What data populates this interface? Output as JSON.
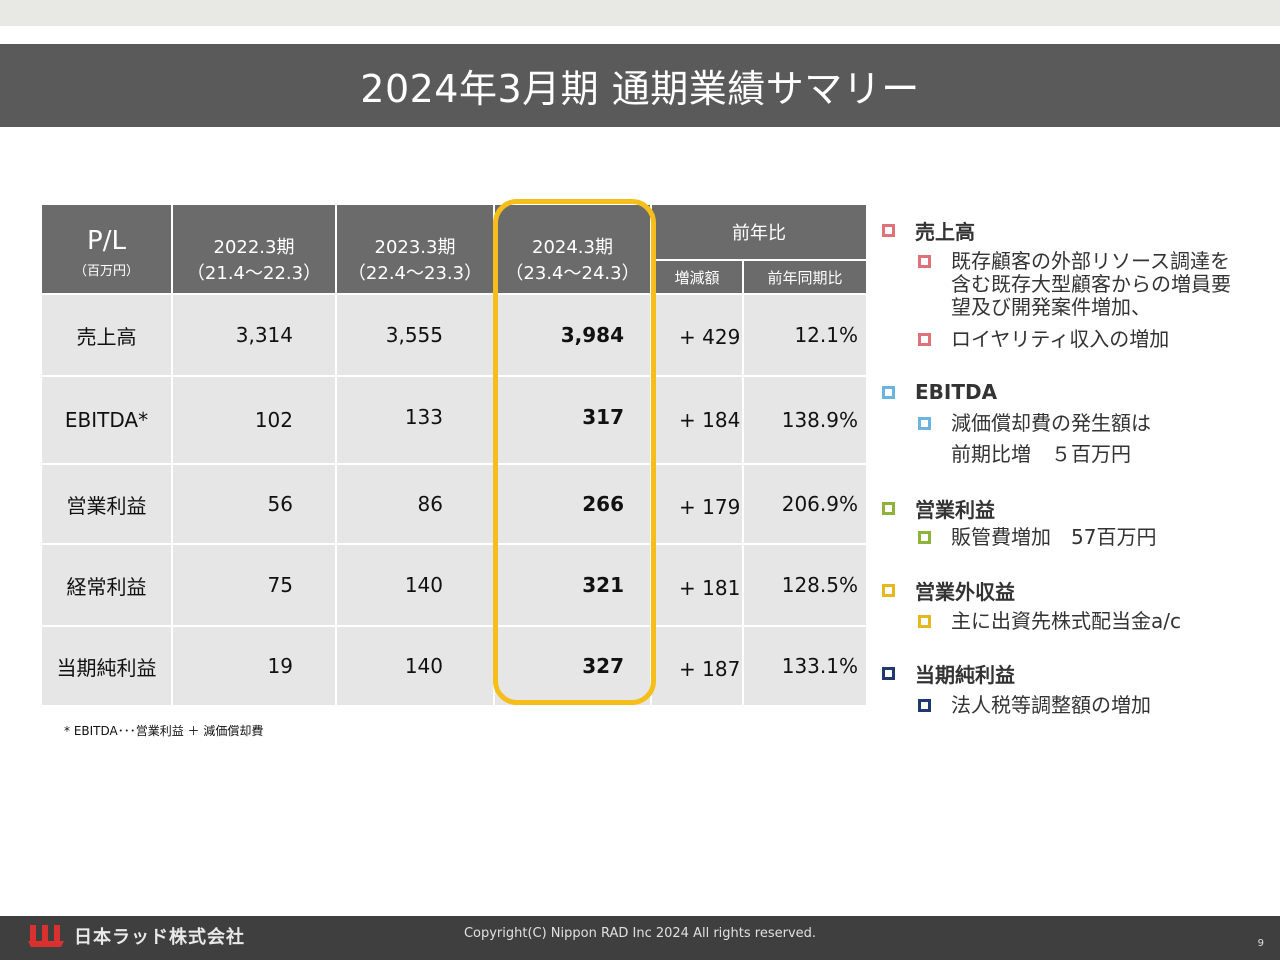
{
  "title": "2024年3月期  通期業績サマリー",
  "table": {
    "corner_label": "P/L",
    "corner_unit": "（百万円）",
    "periods": [
      {
        "label": "2022.3期",
        "range": "（21.4～22.3）"
      },
      {
        "label": "2023.3期",
        "range": "（22.4～23.3）"
      },
      {
        "label": "2024.3期",
        "range": "（23.4～24.3）"
      }
    ],
    "yoy_header": "前年比",
    "yoy_sub": [
      "増減額",
      "前年同期比"
    ],
    "rows": [
      {
        "label": "売上高",
        "values": [
          "3,314",
          "3,555",
          "3,984"
        ],
        "diff": "+ 429",
        "pct": "12.1%"
      },
      {
        "label": "EBITDA*",
        "values": [
          "102",
          "133",
          "317"
        ],
        "diff": "+ 184",
        "pct": "138.9%"
      },
      {
        "label": "営業利益",
        "values": [
          "56",
          "86",
          "266"
        ],
        "diff": "+ 179",
        "pct": "206.9%"
      },
      {
        "label": "経常利益",
        "values": [
          "75",
          "140",
          "321"
        ],
        "diff": "+ 181",
        "pct": "128.5%"
      },
      {
        "label": "当期純利益",
        "values": [
          "19",
          "140",
          "327"
        ],
        "diff": "+ 187",
        "pct": "133.1%"
      }
    ],
    "highlight_color": "#f5be1a"
  },
  "footnote": "* EBITDA･･･営業利益 ＋ 減価償却費",
  "notes": [
    {
      "heading": "売上高",
      "color": "#e0707a",
      "items": [
        "既存顧客の外部リソース調達を含む既存大型顧客からの増員要望及び開発案件増加、",
        "ロイヤリティ収入の増加"
      ]
    },
    {
      "heading": "EBITDA",
      "color": "#6bb3e0",
      "items": [
        "減価償却費の発生額は前期比増　５百万円"
      ]
    },
    {
      "heading": "営業利益",
      "color": "#8db33a",
      "items": [
        "販管費増加　57百万円"
      ]
    },
    {
      "heading": "営業外収益",
      "color": "#e6b820",
      "items": [
        "主に出資先株式配当金a/c"
      ]
    },
    {
      "heading": "当期純利益",
      "color": "#1f3a6e",
      "items": [
        "法人税等調整額の増加"
      ]
    }
  ],
  "footer": {
    "company": "日本ラッド株式会社",
    "copyright": "Copyright(C) Nippon RAD Inc 2024 All rights reserved.",
    "page": "9"
  }
}
